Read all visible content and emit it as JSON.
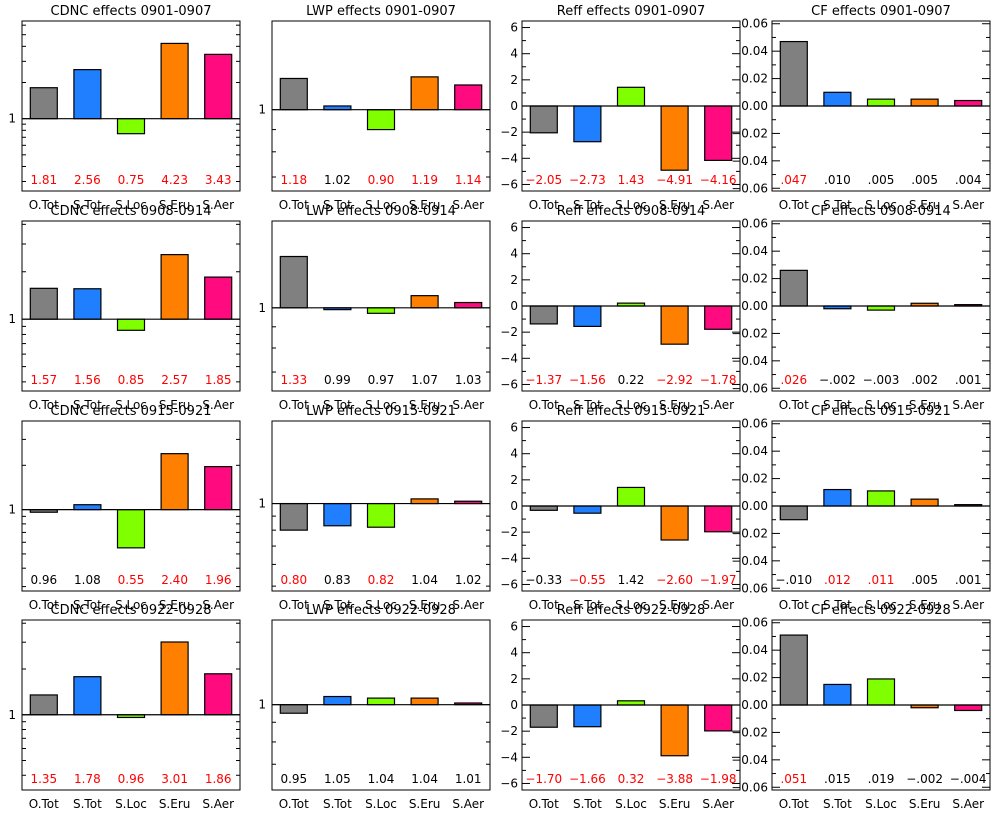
{
  "colors": {
    "bar_colors": [
      "#808080",
      "#1f7fff",
      "#7fff00",
      "#ff7f00",
      "#ff0a7f"
    ],
    "significant_label": "#ff0000",
    "normal_label": "#000000"
  },
  "chart_data": [
    {
      "type": "bar",
      "title": "CDNC effects 0901-0907",
      "categories": [
        "O.Tot",
        "S.Tot",
        "S.Loc",
        "S.Eru",
        "S.Aer"
      ],
      "values": [
        1.81,
        2.56,
        0.75,
        4.23,
        3.43
      ],
      "value_labels": [
        "1.81",
        "2.56",
        "0.75",
        "4.23",
        "3.43"
      ],
      "label_significant": [
        true,
        true,
        true,
        true,
        true
      ],
      "yscale": "log",
      "ylim": [
        0.25,
        6.5
      ],
      "yticks": [
        {
          "value": 1,
          "label": "1"
        }
      ]
    },
    {
      "type": "bar",
      "title": "LWP effects 0901-0907",
      "categories": [
        "O.Tot",
        "S.Tot",
        "S.Loc",
        "S.Eru",
        "S.Aer"
      ],
      "values": [
        1.18,
        1.02,
        0.9,
        1.19,
        1.14
      ],
      "value_labels": [
        "1.18",
        "1.02",
        "0.90",
        "1.19",
        "1.14"
      ],
      "label_significant": [
        true,
        false,
        true,
        true,
        true
      ],
      "yscale": "log",
      "ylim": [
        0.65,
        1.6
      ],
      "yticks": [
        {
          "value": 1,
          "label": "1"
        }
      ]
    },
    {
      "type": "bar",
      "title": "Reff effects 0901-0907",
      "categories": [
        "O.Tot",
        "S.Tot",
        "S.Loc",
        "S.Eru",
        "S.Aer"
      ],
      "values": [
        -2.05,
        -2.73,
        1.43,
        -4.91,
        -4.16
      ],
      "value_labels": [
        "-2.05",
        "-2.73",
        "1.43",
        "-4.91",
        "-4.16"
      ],
      "label_significant": [
        true,
        true,
        true,
        true,
        true
      ],
      "yscale": "linear",
      "ylim": [
        -6.5,
        6.5
      ],
      "yticks": [
        {
          "value": 6,
          "label": "6"
        },
        {
          "value": 4,
          "label": "4"
        },
        {
          "value": 2,
          "label": "2"
        },
        {
          "value": 0,
          "label": "0"
        },
        {
          "value": -2,
          "label": "-2"
        },
        {
          "value": -4,
          "label": "-4"
        },
        {
          "value": -6,
          "label": "-6"
        }
      ]
    },
    {
      "type": "bar",
      "title": "CF effects 0901-0907",
      "categories": [
        "O.Tot",
        "S.Tot",
        "S.Loc",
        "S.Eru",
        "S.Aer"
      ],
      "values": [
        0.047,
        0.01,
        0.005,
        0.005,
        0.004
      ],
      "value_labels": [
        ".047",
        ".010",
        ".005",
        ".005",
        ".004"
      ],
      "label_significant": [
        true,
        false,
        false,
        false,
        false
      ],
      "yscale": "linear",
      "ylim": [
        -0.062,
        0.062
      ],
      "yticks": [
        {
          "value": 0.06,
          "label": "0.06"
        },
        {
          "value": 0.04,
          "label": "0.04"
        },
        {
          "value": 0.02,
          "label": "0.02"
        },
        {
          "value": 0,
          "label": "0.00"
        },
        {
          "value": -0.02,
          "label": "-0.02"
        },
        {
          "value": -0.04,
          "label": "-0.04"
        },
        {
          "value": -0.06,
          "label": "-0.06"
        }
      ]
    },
    {
      "type": "bar",
      "title": "CDNC effects 0908-0914",
      "categories": [
        "O.Tot",
        "S.Tot",
        "S.Loc",
        "S.Eru",
        "S.Aer"
      ],
      "values": [
        1.57,
        1.56,
        0.85,
        2.57,
        1.85
      ],
      "value_labels": [
        "1.57",
        "1.56",
        "0.85",
        "2.57",
        "1.85"
      ],
      "label_significant": [
        true,
        true,
        true,
        true,
        true
      ],
      "yscale": "log",
      "ylim": [
        0.35,
        4.2
      ],
      "yticks": [
        {
          "value": 1,
          "label": "1"
        }
      ]
    },
    {
      "type": "bar",
      "title": "LWP effects 0908-0914",
      "categories": [
        "O.Tot",
        "S.Tot",
        "S.Loc",
        "S.Eru",
        "S.Aer"
      ],
      "values": [
        1.33,
        0.99,
        0.97,
        1.07,
        1.03
      ],
      "value_labels": [
        "1.33",
        "0.99",
        "0.97",
        "1.07",
        "1.03"
      ],
      "label_significant": [
        true,
        false,
        false,
        false,
        false
      ],
      "yscale": "log",
      "ylim": [
        0.63,
        1.62
      ],
      "yticks": [
        {
          "value": 1,
          "label": "1"
        }
      ]
    },
    {
      "type": "bar",
      "title": "Reff effects 0908-0914",
      "categories": [
        "O.Tot",
        "S.Tot",
        "S.Loc",
        "S.Eru",
        "S.Aer"
      ],
      "values": [
        -1.37,
        -1.56,
        0.22,
        -2.92,
        -1.78
      ],
      "value_labels": [
        "-1.37",
        "-1.56",
        "0.22",
        "-2.92",
        "-1.78"
      ],
      "label_significant": [
        true,
        true,
        false,
        true,
        true
      ],
      "yscale": "linear",
      "ylim": [
        -6.5,
        6.5
      ],
      "yticks": [
        {
          "value": 6,
          "label": "6"
        },
        {
          "value": 4,
          "label": "4"
        },
        {
          "value": 2,
          "label": "2"
        },
        {
          "value": 0,
          "label": "0"
        },
        {
          "value": -2,
          "label": "-2"
        },
        {
          "value": -4,
          "label": "-4"
        },
        {
          "value": -6,
          "label": "-6"
        }
      ]
    },
    {
      "type": "bar",
      "title": "CF effects 0908-0914",
      "categories": [
        "O.Tot",
        "S.Tot",
        "S.Loc",
        "S.Eru",
        "S.Aer"
      ],
      "values": [
        0.026,
        -0.002,
        -0.003,
        0.002,
        0.001
      ],
      "value_labels": [
        ".026",
        "-.002",
        "-.003",
        ".002",
        ".001"
      ],
      "label_significant": [
        true,
        false,
        false,
        false,
        false
      ],
      "yscale": "linear",
      "ylim": [
        -0.062,
        0.062
      ],
      "yticks": [
        {
          "value": 0.06,
          "label": "0.06"
        },
        {
          "value": 0.04,
          "label": "0.04"
        },
        {
          "value": 0.02,
          "label": "0.02"
        },
        {
          "value": 0,
          "label": "0.00"
        },
        {
          "value": -0.02,
          "label": "-0.02"
        },
        {
          "value": -0.04,
          "label": "-0.04"
        },
        {
          "value": -0.06,
          "label": "-0.06"
        }
      ]
    },
    {
      "type": "bar",
      "title": "CDNC effects 0915-0921",
      "categories": [
        "O.Tot",
        "S.Tot",
        "S.Loc",
        "S.Eru",
        "S.Aer"
      ],
      "values": [
        0.96,
        1.08,
        0.55,
        2.4,
        1.96
      ],
      "value_labels": [
        "0.96",
        "1.08",
        "0.55",
        "2.40",
        "1.96"
      ],
      "label_significant": [
        false,
        false,
        true,
        true,
        true
      ],
      "yscale": "log",
      "ylim": [
        0.28,
        4.0
      ],
      "yticks": [
        {
          "value": 1,
          "label": "1"
        }
      ]
    },
    {
      "type": "bar",
      "title": "LWP effects 0915-0921",
      "categories": [
        "O.Tot",
        "S.Tot",
        "S.Loc",
        "S.Eru",
        "S.Aer"
      ],
      "values": [
        0.8,
        0.83,
        0.82,
        1.04,
        1.02
      ],
      "value_labels": [
        "0.80",
        "0.83",
        "0.82",
        "1.04",
        "1.02"
      ],
      "label_significant": [
        true,
        false,
        true,
        false,
        false
      ],
      "yscale": "log",
      "ylim": [
        0.48,
        2.0
      ],
      "yticks": [
        {
          "value": 1,
          "label": "1"
        }
      ]
    },
    {
      "type": "bar",
      "title": "Reff effects 0915-0921",
      "categories": [
        "O.Tot",
        "S.Tot",
        "S.Loc",
        "S.Eru",
        "S.Aer"
      ],
      "values": [
        -0.33,
        -0.55,
        1.42,
        -2.6,
        -1.97
      ],
      "value_labels": [
        "-0.33",
        "-0.55",
        "1.42",
        "-2.60",
        "-1.97"
      ],
      "label_significant": [
        false,
        true,
        false,
        true,
        true
      ],
      "yscale": "linear",
      "ylim": [
        -6.5,
        6.5
      ],
      "yticks": [
        {
          "value": 6,
          "label": "6"
        },
        {
          "value": 4,
          "label": "4"
        },
        {
          "value": 2,
          "label": "2"
        },
        {
          "value": 0,
          "label": "0"
        },
        {
          "value": -2,
          "label": "-2"
        },
        {
          "value": -4,
          "label": "-4"
        },
        {
          "value": -6,
          "label": "-6"
        }
      ]
    },
    {
      "type": "bar",
      "title": "CF effects 0915-0921",
      "categories": [
        "O.Tot",
        "S.Tot",
        "S.Loc",
        "S.Eru",
        "S.Aer"
      ],
      "values": [
        -0.01,
        0.012,
        0.011,
        0.005,
        0.001
      ],
      "value_labels": [
        "-.010",
        ".012",
        ".011",
        ".005",
        ".001"
      ],
      "label_significant": [
        false,
        true,
        true,
        false,
        false
      ],
      "yscale": "linear",
      "ylim": [
        -0.062,
        0.062
      ],
      "yticks": [
        {
          "value": 0.06,
          "label": "0.06"
        },
        {
          "value": 0.04,
          "label": "0.04"
        },
        {
          "value": 0.02,
          "label": "0.02"
        },
        {
          "value": 0,
          "label": "0.00"
        },
        {
          "value": -0.02,
          "label": "-0.02"
        },
        {
          "value": -0.04,
          "label": "-0.04"
        },
        {
          "value": -0.06,
          "label": "-0.06"
        }
      ]
    },
    {
      "type": "bar",
      "title": "CDNC effects 0922-0928",
      "categories": [
        "O.Tot",
        "S.Tot",
        "S.Loc",
        "S.Eru",
        "S.Aer"
      ],
      "values": [
        1.35,
        1.78,
        0.96,
        3.01,
        1.86
      ],
      "value_labels": [
        "1.35",
        "1.78",
        "0.96",
        "3.01",
        "1.86"
      ],
      "label_significant": [
        true,
        true,
        true,
        true,
        true
      ],
      "yscale": "log",
      "ylim": [
        0.32,
        4.2
      ],
      "yticks": [
        {
          "value": 1,
          "label": "1"
        }
      ]
    },
    {
      "type": "bar",
      "title": "LWP effects 0922-0928",
      "categories": [
        "O.Tot",
        "S.Tot",
        "S.Loc",
        "S.Eru",
        "S.Aer"
      ],
      "values": [
        0.95,
        1.05,
        1.04,
        1.04,
        1.01
      ],
      "value_labels": [
        "0.95",
        "1.05",
        "1.04",
        "1.04",
        "1.01"
      ],
      "label_significant": [
        false,
        false,
        false,
        false,
        false
      ],
      "yscale": "log",
      "ylim": [
        0.6,
        1.66
      ],
      "yticks": [
        {
          "value": 1,
          "label": "1"
        }
      ]
    },
    {
      "type": "bar",
      "title": "Reff effects 0922-0928",
      "categories": [
        "O.Tot",
        "S.Tot",
        "S.Loc",
        "S.Eru",
        "S.Aer"
      ],
      "values": [
        -1.7,
        -1.66,
        0.32,
        -3.88,
        -1.98
      ],
      "value_labels": [
        "-1.70",
        "-1.66",
        "0.32",
        "-3.88",
        "-1.98"
      ],
      "label_significant": [
        true,
        true,
        true,
        true,
        true
      ],
      "yscale": "linear",
      "ylim": [
        -6.5,
        6.5
      ],
      "yticks": [
        {
          "value": 6,
          "label": "6"
        },
        {
          "value": 4,
          "label": "4"
        },
        {
          "value": 2,
          "label": "2"
        },
        {
          "value": 0,
          "label": "0"
        },
        {
          "value": -2,
          "label": "-2"
        },
        {
          "value": -4,
          "label": "-4"
        },
        {
          "value": -6,
          "label": "-6"
        }
      ]
    },
    {
      "type": "bar",
      "title": "CF effects 0922-0928",
      "categories": [
        "O.Tot",
        "S.Tot",
        "S.Loc",
        "S.Eru",
        "S.Aer"
      ],
      "values": [
        0.051,
        0.015,
        0.019,
        -0.002,
        -0.004
      ],
      "value_labels": [
        ".051",
        ".015",
        ".019",
        "-.002",
        "-.004"
      ],
      "label_significant": [
        true,
        false,
        false,
        false,
        false
      ],
      "yscale": "linear",
      "ylim": [
        -0.062,
        0.062
      ],
      "yticks": [
        {
          "value": 0.06,
          "label": "0.06"
        },
        {
          "value": 0.04,
          "label": "0.04"
        },
        {
          "value": 0.02,
          "label": "0.02"
        },
        {
          "value": 0,
          "label": "0.00"
        },
        {
          "value": -0.02,
          "label": "-0.02"
        },
        {
          "value": -0.04,
          "label": "-0.04"
        },
        {
          "value": -0.06,
          "label": "-0.06"
        }
      ]
    }
  ]
}
